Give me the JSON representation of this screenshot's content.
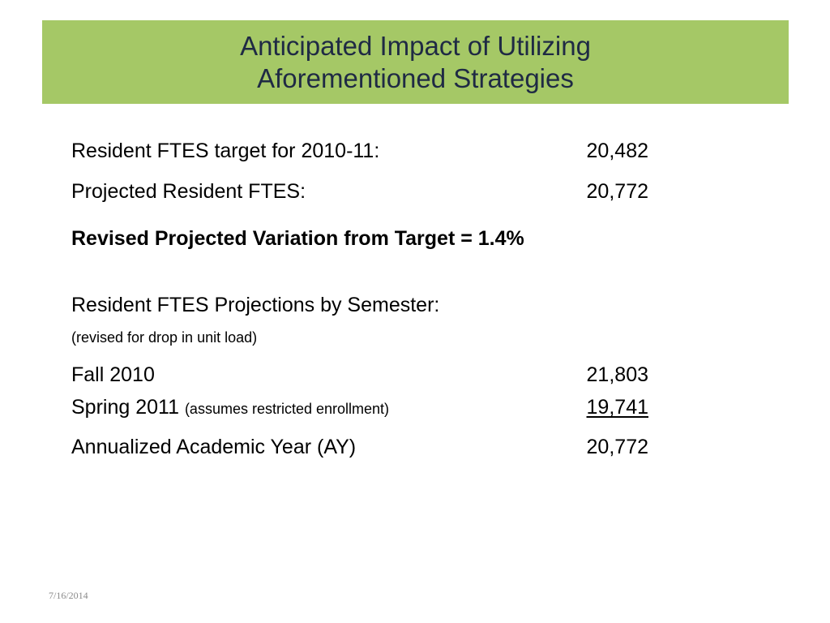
{
  "title": {
    "line1": "Anticipated Impact of Utilizing",
    "line2": "Aforementioned Strategies"
  },
  "summary": {
    "target_label": "Resident FTES target for 2010-11:",
    "target_value": "20,482",
    "projected_label": "Projected Resident FTES:",
    "projected_value": "20,772",
    "variation_text": "Revised Projected Variation from Target = 1.4%"
  },
  "semester": {
    "heading": "Resident FTES Projections by Semester:",
    "note": "(revised for drop in unit load)",
    "rows": [
      {
        "label": "Fall 2010",
        "note": "",
        "value": "21,803"
      },
      {
        "label": "Spring 2011",
        "note": "(assumes restricted enrollment)",
        "value": "19,741"
      },
      {
        "label": "Annualized Academic Year (AY)",
        "note": "",
        "value": "20,772"
      }
    ]
  },
  "footer": {
    "date": "7/16/2014"
  },
  "colors": {
    "title_bar": "#a5c866",
    "title_text": "#1f2a44",
    "footer_text": "#8a8a8a"
  }
}
